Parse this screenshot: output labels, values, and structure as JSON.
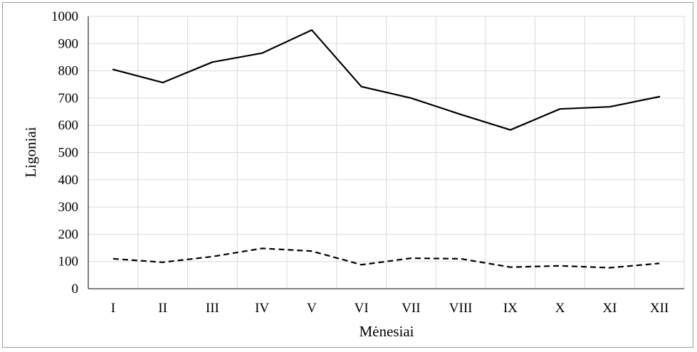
{
  "chart_data": {
    "type": "line",
    "categories": [
      "I",
      "II",
      "III",
      "IV",
      "V",
      "VI",
      "VII",
      "VIII",
      "IX",
      "X",
      "XI",
      "XII"
    ],
    "series": [
      {
        "style": "solid",
        "values": [
          805,
          757,
          832,
          865,
          950,
          742,
          700,
          640,
          583,
          660,
          668,
          705
        ]
      },
      {
        "style": "dashed",
        "values": [
          110,
          97,
          118,
          148,
          138,
          88,
          112,
          110,
          79,
          84,
          77,
          93
        ]
      }
    ],
    "xlabel": "Mėnesiai",
    "ylabel": "Ligoniai",
    "ylim": [
      0,
      1000
    ],
    "yticks": [
      "0",
      "100",
      "200",
      "300",
      "400",
      "500",
      "600",
      "700",
      "800",
      "900",
      "1000"
    ],
    "grid": true,
    "legend": "none",
    "colors": {
      "line": "#000000",
      "grid": "#d9d9d9",
      "axis": "#000000",
      "frame": "#9a9a9a"
    }
  }
}
